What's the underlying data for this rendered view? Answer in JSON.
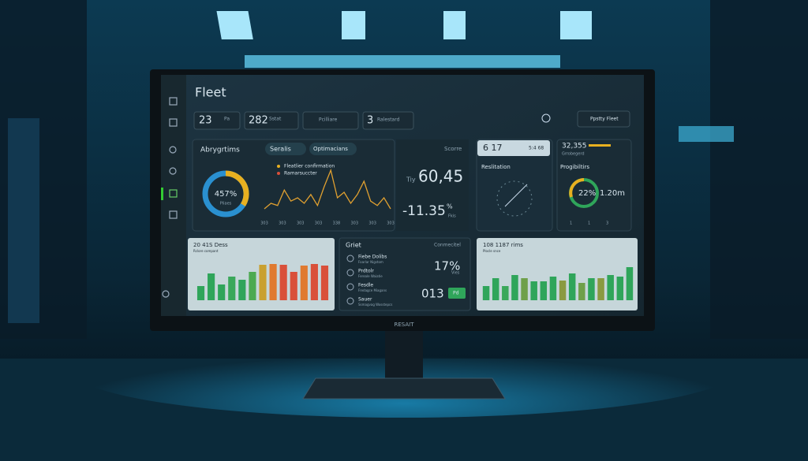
{
  "brand": "RESAIT",
  "header": {
    "title": "Fleet",
    "stats": [
      {
        "value": "23",
        "label": "Pa"
      },
      {
        "value": "282",
        "label": "Sstat"
      },
      {
        "label": "Pcilliare"
      },
      {
        "value": "3",
        "label": "Ralestard"
      }
    ],
    "button": "Ppstty Fleet"
  },
  "panel_1": {
    "title": "Abrygrtims",
    "dropdown": "Seralis",
    "chip": "Optimacians",
    "donut": {
      "label": "457%",
      "sub": "Pliaes"
    },
    "legend": [
      "Fleatlier confirmation",
      "Ramarsuccter"
    ],
    "line": {
      "color": "#e0a030",
      "values": [
        5,
        10,
        8,
        22,
        12,
        15,
        10,
        18,
        8,
        25,
        40,
        15,
        20,
        10,
        18,
        30,
        12,
        8,
        15,
        5
      ]
    },
    "x_labels": [
      "303",
      "303",
      "303",
      "303",
      "338",
      "303",
      "303",
      "303"
    ]
  },
  "panel_2": {
    "label": "Scorre",
    "prefix": "Tiy",
    "value": "60,45",
    "change": "-11.35",
    "unit": "%",
    "sub": "Fkis"
  },
  "panel_3": {
    "time": "6 17",
    "stat": "5:4 68",
    "title": "Reslitation"
  },
  "panel_4": {
    "value": "32,355",
    "sub": "Grrobegerd",
    "title": "Progibiltirs",
    "donut": "22%",
    "metric": "1.20m",
    "axis": [
      "1",
      "1",
      "3"
    ]
  },
  "bottom_1": {
    "title": "20 41S Dess",
    "sub": "Rclore compant",
    "bars": {
      "values": [
        18,
        34,
        20,
        30,
        26,
        36,
        45,
        46,
        45,
        36,
        44,
        46,
        44
      ],
      "colors": [
        "#2fa55a",
        "#2fa55a",
        "#2fa55a",
        "#3aa85a",
        "#2fa55a",
        "#4caa50",
        "#c9a030",
        "#e07a30",
        "#d9503a",
        "#d9503a",
        "#e07a30",
        "#d9503a",
        "#d9503a"
      ]
    }
  },
  "bottom_2": {
    "title": "Griet",
    "right": "Conmecitel",
    "items": [
      {
        "name": "Fiebe Dolibs",
        "sub": "Foarlar Nigstom"
      },
      {
        "name": "Prdtolr",
        "sub": "Fereale Waiatie"
      },
      {
        "name": "Fesdle",
        "sub": "Fredagce Miagans"
      },
      {
        "name": "Sauer",
        "sub": "Ssmagvag Wosstepcs"
      }
    ],
    "percent": "17%",
    "percent_sub": "Vies",
    "count": "013",
    "chip": "Pd"
  },
  "bottom_3": {
    "title": "108 1187 rims",
    "sub": "Plocle snce",
    "bars": {
      "values": [
        18,
        28,
        18,
        32,
        28,
        24,
        24,
        30,
        25,
        34,
        22,
        28,
        28,
        32,
        30,
        42
      ],
      "colors": [
        "#2fa55a",
        "#2fa55a",
        "#3aa85a",
        "#2fa55a",
        "#6fa04a",
        "#2fa55a",
        "#2fa55a",
        "#2fa55a",
        "#8a9a40",
        "#2fa55a",
        "#6fa04a",
        "#2fa55a",
        "#8a9a40",
        "#2fa55a",
        "#2fa55a",
        "#2fa55a"
      ]
    }
  }
}
